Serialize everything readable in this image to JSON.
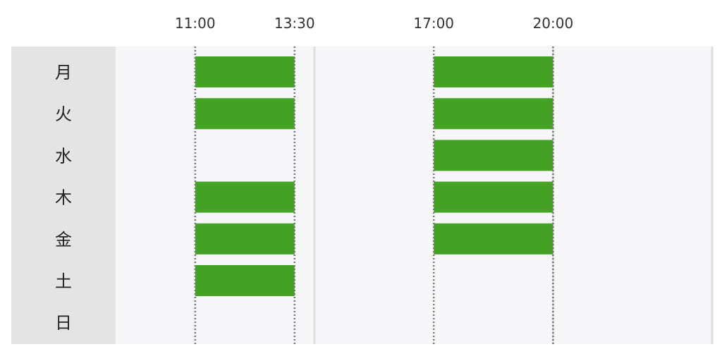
{
  "chart_data": {
    "type": "timeline",
    "title": "",
    "x_axis": {
      "unit": "time of day",
      "range": [
        "09:00",
        "24:00"
      ],
      "tick_labels": [
        "11:00",
        "13:30",
        "17:00",
        "20:00"
      ],
      "tick_times": [
        11.0,
        13.5,
        17.0,
        20.0
      ],
      "dotted_guides": [
        11.0,
        13.5,
        17.0,
        20.0
      ],
      "solid_guides": [
        14.0,
        20.0,
        24.0
      ]
    },
    "days": [
      "月",
      "火",
      "水",
      "木",
      "金",
      "土",
      "日"
    ],
    "series": [
      {
        "color": "#44a325",
        "intervals": [
          {
            "day": "月",
            "start": "11:00",
            "end": "13:30"
          },
          {
            "day": "火",
            "start": "11:00",
            "end": "13:30"
          },
          {
            "day": "木",
            "start": "11:00",
            "end": "13:30"
          },
          {
            "day": "金",
            "start": "11:00",
            "end": "13:30"
          },
          {
            "day": "土",
            "start": "11:00",
            "end": "13:30"
          },
          {
            "day": "月",
            "start": "17:00",
            "end": "20:00"
          },
          {
            "day": "火",
            "start": "17:00",
            "end": "20:00"
          },
          {
            "day": "水",
            "start": "17:00",
            "end": "20:00"
          },
          {
            "day": "木",
            "start": "17:00",
            "end": "20:00"
          },
          {
            "day": "金",
            "start": "17:00",
            "end": "20:00"
          }
        ]
      }
    ],
    "colors": {
      "bar": "#44a325",
      "plot_background": "#f7f7f9",
      "label_column": "#e4e4e4",
      "dotted_line": "#777777",
      "solid_line": "#dddddd"
    },
    "grid": true,
    "legend": "none"
  }
}
